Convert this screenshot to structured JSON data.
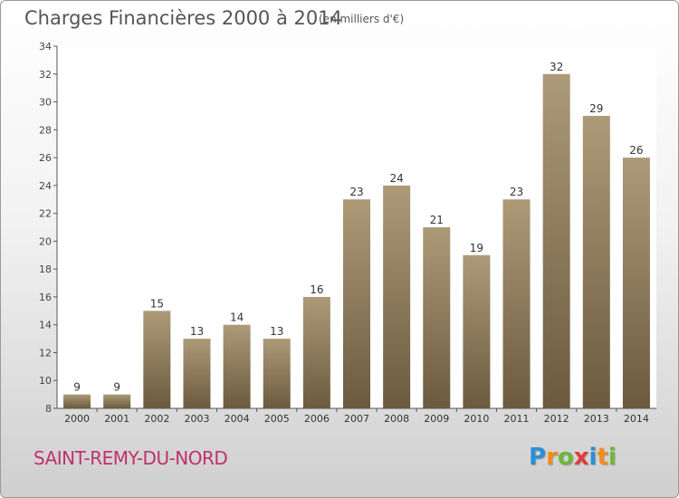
{
  "header": {
    "title": "Charges Financières 2000 à 2014",
    "subtitle": "(en milliers d'€)"
  },
  "footer": {
    "city": "SAINT-REMY-DU-NORD",
    "logo": {
      "letters": [
        "P",
        "r",
        "o",
        "x",
        "i",
        "t",
        "i"
      ],
      "colors": [
        "#2a8fd8",
        "#f28c1c",
        "#6cb83a",
        "#e23b3b",
        "#2a8fd8",
        "#f28c1c",
        "#6cb83a"
      ]
    }
  },
  "chart_data": {
    "type": "bar",
    "title": "Charges Financières 2000 à 2014",
    "subtitle": "(en milliers d'€)",
    "categories": [
      "2000",
      "2001",
      "2002",
      "2003",
      "2004",
      "2005",
      "2006",
      "2007",
      "2008",
      "2009",
      "2010",
      "2011",
      "2012",
      "2013",
      "2014"
    ],
    "values": [
      9,
      9,
      15,
      13,
      14,
      13,
      16,
      23,
      24,
      21,
      19,
      23,
      32,
      29,
      26
    ],
    "data_labels": [
      "9",
      "9",
      "15",
      "13",
      "14",
      "13",
      "16",
      "23",
      "24",
      "21",
      "19",
      "23",
      "32",
      "29",
      "26"
    ],
    "ylim": [
      8,
      34
    ],
    "yticks": [
      8,
      10,
      12,
      14,
      16,
      18,
      20,
      22,
      24,
      26,
      28,
      30,
      32,
      34
    ],
    "ytick_labels": [
      "8",
      "10",
      "12",
      "14",
      "16",
      "18",
      "20",
      "22",
      "24",
      "26",
      "28",
      "30",
      "32",
      "34"
    ],
    "grid": false,
    "xlabel": "",
    "ylabel": "",
    "bar_colors": {
      "top": "#ad9a78",
      "bottom": "#6b5a3e"
    }
  }
}
